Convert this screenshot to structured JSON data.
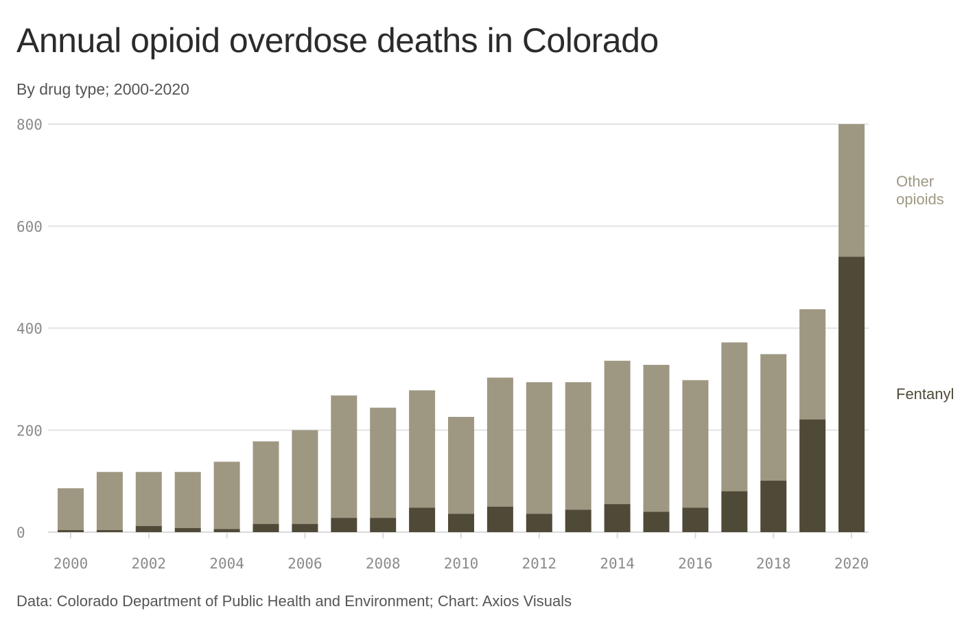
{
  "header": {
    "title": "Annual opioid overdose deaths in Colorado",
    "subtitle": "By drug type; 2000-2020"
  },
  "footer": {
    "source": "Data: Colorado Department of Public Health and Environment; Chart: Axios Visuals"
  },
  "colors": {
    "fentanyl": "#4f4937",
    "other": "#9e9782",
    "grid": "#e3e3e3",
    "axis": "#d9d9d9",
    "other_label": "#9e9782",
    "fentanyl_label": "#4f4937"
  },
  "chart_data": {
    "type": "bar",
    "stacked": true,
    "title": "Annual opioid overdose deaths in Colorado",
    "subtitle": "By drug type; 2000-2020",
    "categories": [
      "2000",
      "2001",
      "2002",
      "2003",
      "2004",
      "2005",
      "2006",
      "2007",
      "2008",
      "2009",
      "2010",
      "2011",
      "2012",
      "2013",
      "2014",
      "2015",
      "2016",
      "2017",
      "2018",
      "2019",
      "2020"
    ],
    "series": [
      {
        "name": "Fentanyl",
        "values": [
          4,
          4,
          12,
          8,
          6,
          16,
          16,
          28,
          28,
          48,
          36,
          50,
          36,
          44,
          55,
          40,
          48,
          80,
          101,
          221,
          540
        ]
      },
      {
        "name": "Other opioids",
        "values": [
          82,
          114,
          106,
          110,
          132,
          162,
          184,
          240,
          216,
          230,
          190,
          253,
          258,
          250,
          281,
          288,
          250,
          292,
          248,
          216,
          260
        ]
      }
    ],
    "legend": {
      "other_line1": "Other",
      "other_line2": "opioids",
      "fentanyl": "Fentanyl",
      "placement": "right"
    },
    "yticks": [
      0,
      200,
      400,
      600,
      800
    ],
    "xtick_labels": [
      "2000",
      "2002",
      "2004",
      "2006",
      "2008",
      "2010",
      "2012",
      "2014",
      "2016",
      "2018",
      "2020"
    ],
    "ylim": [
      0,
      800
    ],
    "grid": true,
    "xlabel": "",
    "ylabel": ""
  }
}
